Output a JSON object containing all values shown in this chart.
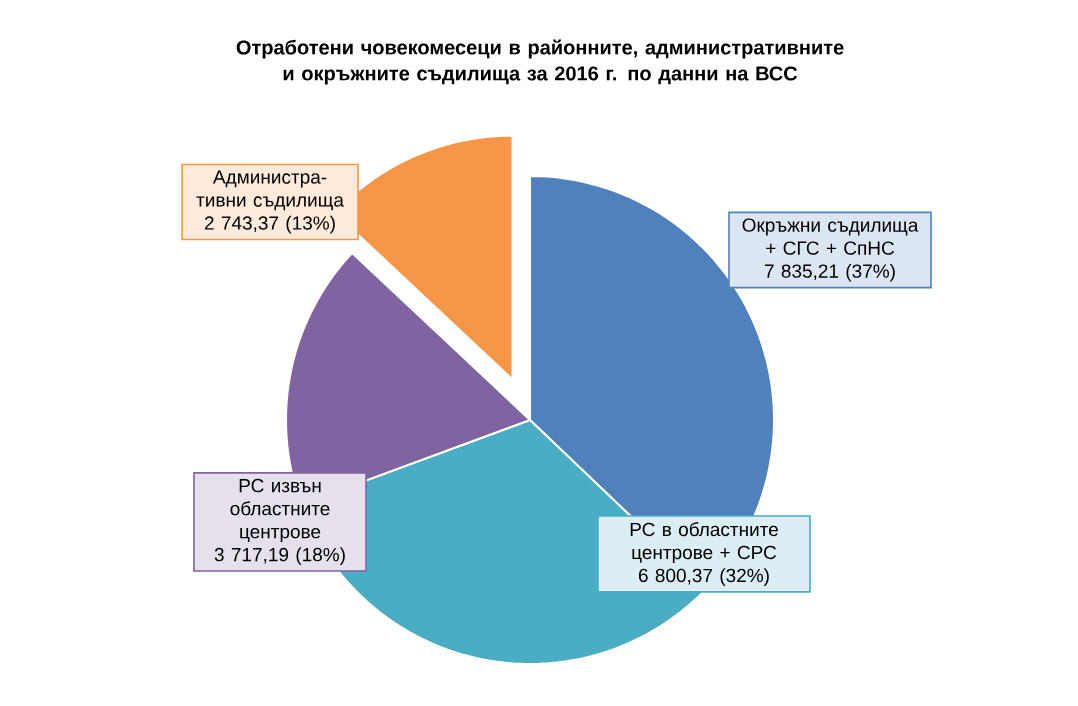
{
  "chart_data": {
    "type": "pie",
    "title": "Отработени човекомесеци в районните, административните и окръжните съдилища за 2016  г. по данни на ВСС",
    "categories": [
      "Окръжни съдилища + СГС + СпНС",
      "РС в областните центрове + СРС",
      "РС извън областните центрове",
      "Администра-тивни съдилища"
    ],
    "values": [
      7835.21,
      6800.37,
      3717.19,
      2743.37
    ],
    "value_labels": [
      "7 835,21 (37%)",
      "6 800,37 (32%)",
      "3 717,19 (18%)",
      "2 743,37 (13%)"
    ],
    "colors": [
      "#4f81bd",
      "#4bacc6",
      "#8064a2",
      "#f79646"
    ]
  }
}
